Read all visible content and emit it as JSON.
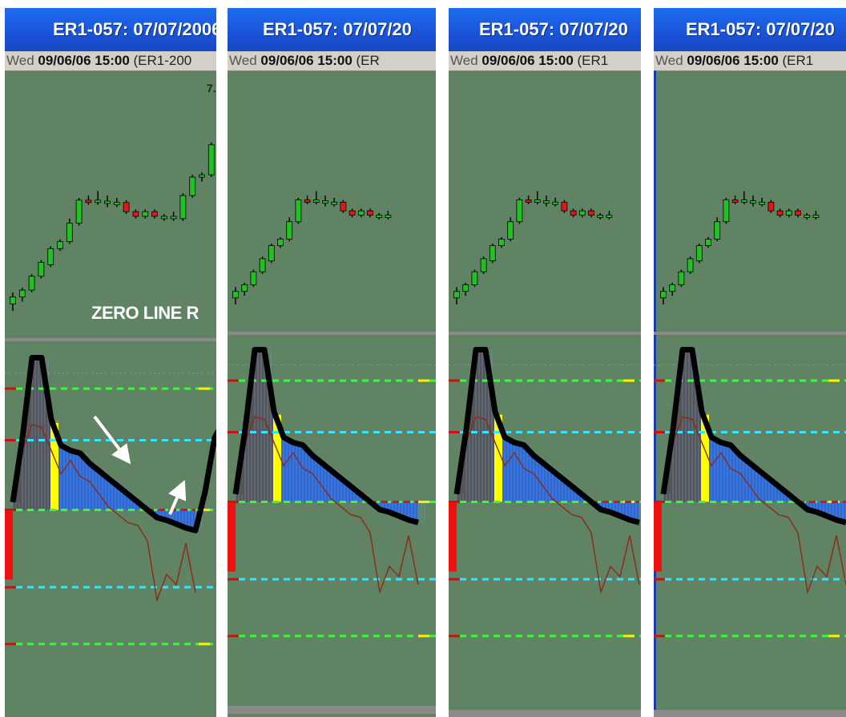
{
  "panels": [
    {
      "title": "ER1-057:  07/07/2006*",
      "status_weekday": "Wed",
      "status_datetime": "09/06/06 15:00",
      "status_tail": " (ER1-200",
      "annotation": "ZERO LINE R",
      "corner_value": "7."
    },
    {
      "title": "ER1-057:  07/07/20",
      "status_weekday": "Wed",
      "status_datetime": "09/06/06 15:00",
      "status_tail": " (ER",
      "annotation": "",
      "corner_value": ""
    },
    {
      "title": "ER1-057:  07/07/20",
      "status_weekday": "Wed",
      "status_datetime": "09/06/06 15:00",
      "status_tail": " (ER1",
      "annotation": "",
      "corner_value": ""
    },
    {
      "title": "ER1-057:  07/07/20",
      "status_weekday": "Wed",
      "status_datetime": "09/06/06 15:00",
      "status_tail": " (ER1",
      "annotation": "",
      "corner_value": ""
    }
  ],
  "colors": {
    "background": "#5f8363",
    "up_candle": "#22c022",
    "down_candle": "#e01818",
    "histogram_above": "#2a66d8",
    "histogram_peak": "#555555",
    "yellow_bar": "#ffff00",
    "thick_line": "#000000",
    "thin_line": "#8b2a14",
    "level_green": "#33ff33",
    "level_cyan": "#33e6ff"
  },
  "chart_data": {
    "type": "candlestick",
    "candles": [
      {
        "o": 0.5,
        "h": 3.0,
        "l": -1.0,
        "c": 2.0,
        "dir": "up"
      },
      {
        "o": 2.0,
        "h": 4.0,
        "l": 1.0,
        "c": 3.5,
        "dir": "up"
      },
      {
        "o": 3.5,
        "h": 7.0,
        "l": 3.0,
        "c": 6.5,
        "dir": "up"
      },
      {
        "o": 6.5,
        "h": 10.0,
        "l": 6.0,
        "c": 9.5,
        "dir": "up"
      },
      {
        "o": 9.0,
        "h": 13.0,
        "l": 8.5,
        "c": 12.5,
        "dir": "up"
      },
      {
        "o": 12.5,
        "h": 14.5,
        "l": 12.0,
        "c": 14.0,
        "dir": "up"
      },
      {
        "o": 14.0,
        "h": 19.0,
        "l": 13.5,
        "c": 18.0,
        "dir": "up"
      },
      {
        "o": 18.0,
        "h": 23.5,
        "l": 17.5,
        "c": 23.0,
        "dir": "up"
      },
      {
        "o": 23.0,
        "h": 24.0,
        "l": 22.0,
        "c": 22.5,
        "dir": "down"
      },
      {
        "o": 22.5,
        "h": 25.0,
        "l": 22.0,
        "c": 23.0,
        "dir": "up"
      },
      {
        "o": 22.5,
        "h": 24.0,
        "l": 21.5,
        "c": 22.8,
        "dir": "flat"
      },
      {
        "o": 22.5,
        "h": 23.5,
        "l": 21.5,
        "c": 22.5,
        "dir": "flat"
      },
      {
        "o": 22.5,
        "h": 23.0,
        "l": 20.0,
        "c": 20.5,
        "dir": "down"
      },
      {
        "o": 20.5,
        "h": 21.0,
        "l": 19.0,
        "c": 19.5,
        "dir": "down"
      },
      {
        "o": 19.5,
        "h": 21.0,
        "l": 19.0,
        "c": 20.5,
        "dir": "up"
      },
      {
        "o": 20.5,
        "h": 21.0,
        "l": 19.0,
        "c": 19.5,
        "dir": "down"
      },
      {
        "o": 19.5,
        "h": 20.0,
        "l": 18.5,
        "c": 19.5,
        "dir": "flat"
      },
      {
        "o": 19.5,
        "h": 20.5,
        "l": 18.5,
        "c": 19.0,
        "dir": "flat"
      }
    ],
    "late_candles_panel1": [
      {
        "o": 19.0,
        "h": 24.5,
        "l": 18.5,
        "c": 24.0,
        "dir": "up"
      },
      {
        "o": 24.0,
        "h": 28.5,
        "l": 23.5,
        "c": 28.0,
        "dir": "up"
      },
      {
        "o": 28.0,
        "h": 29.0,
        "l": 27.0,
        "c": 28.5,
        "dir": "up"
      },
      {
        "o": 28.5,
        "h": 35.5,
        "l": 28.0,
        "c": 35.0,
        "dir": "up"
      }
    ],
    "oscillator": [
      -10.0,
      15.0,
      46.0,
      46.0,
      22.0,
      12.0,
      10.0,
      9.0,
      5.0,
      2.0,
      -1.0,
      -4.0,
      -7.0,
      -10.0,
      -13.0,
      -16.0,
      -17.0,
      -18.5,
      -20.0,
      -21.0
    ],
    "oscillator_rebound_panel1": [
      -6.0,
      15.0,
      22.0
    ],
    "signal": [
      -10.0,
      10.0,
      20.0,
      19.0,
      10.0,
      1.0,
      6.0,
      0.0,
      -2.0,
      -7.0,
      -12.0,
      -15.0,
      -18.0,
      -19.0,
      -25.0,
      -48.0,
      -38.0,
      -42.0,
      -26.0,
      -45.0
    ],
    "levels": [
      34,
      14,
      -13,
      -43,
      -65
    ],
    "level_colors": [
      "green",
      "cyan",
      "green",
      "cyan",
      "green"
    ],
    "ylim": [
      -70,
      48
    ]
  }
}
